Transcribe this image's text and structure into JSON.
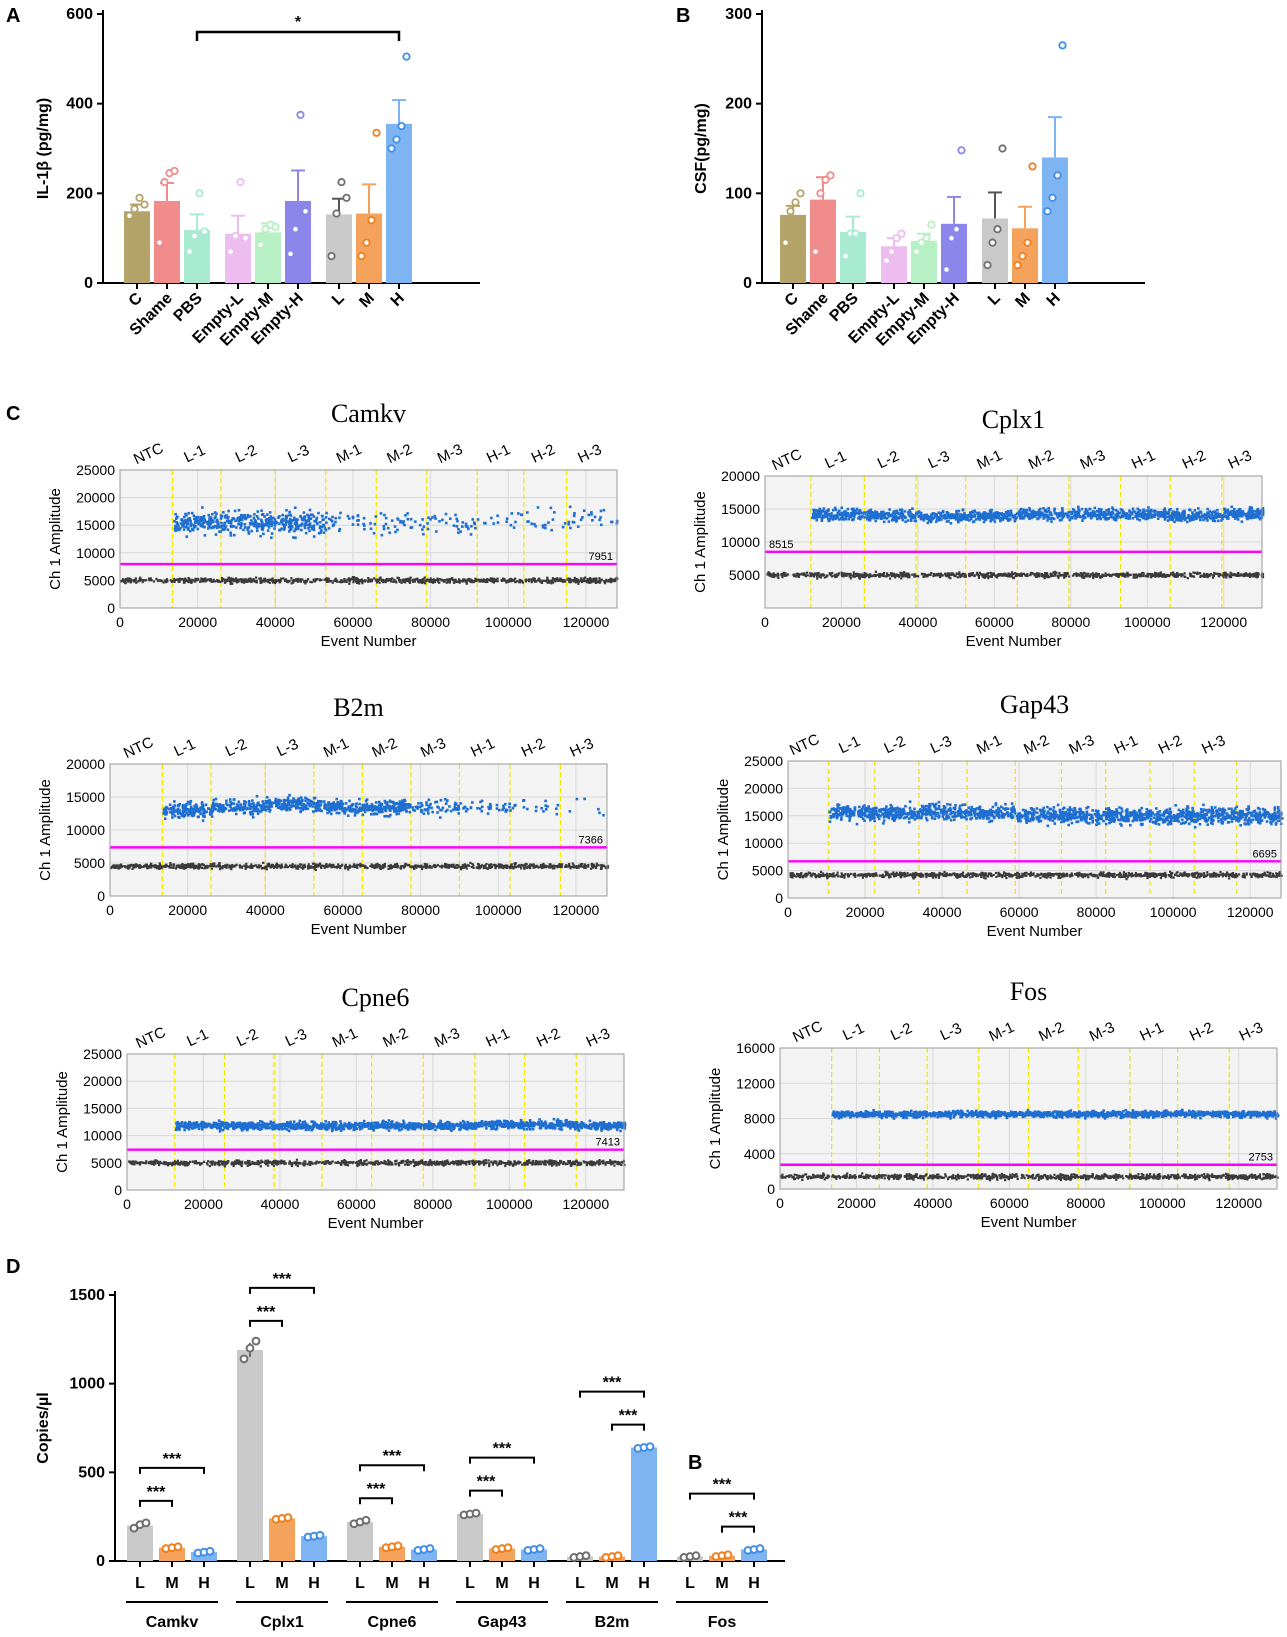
{
  "panel_letters": {
    "A": "A",
    "B": "B",
    "C": "C",
    "D": "D",
    "stray": "B"
  },
  "colors": {
    "C": "#b5a46a",
    "Shame": "#f08c8c",
    "PBS": "#a9ead2",
    "Empty-L": "#edbdf0",
    "Empty-M": "#b6f0c4",
    "Empty-H": "#8c86ea",
    "L": "#c9c9c9",
    "M": "#f5a35c",
    "H": "#7fb4f2",
    "dotL": "#6e6e6e",
    "dotM": "#ef7f1a",
    "dotH": "#3f8fe6",
    "positive": "#1e6fd1",
    "negative": "#3a3a3a",
    "threshold": "#ff00ff",
    "divider": "#f2e600"
  },
  "chart_data": [
    {
      "id": "A",
      "type": "bar",
      "categories": [
        "C",
        "Shame",
        "PBS",
        "Empty-L",
        "Empty-M",
        "Empty-H",
        "L",
        "M",
        "H"
      ],
      "values": [
        160,
        183,
        118,
        110,
        113,
        183,
        153,
        155,
        355
      ],
      "sem": [
        15,
        40,
        35,
        40,
        20,
        68,
        35,
        65,
        53
      ],
      "points": [
        [
          150,
          165,
          190,
          175
        ],
        [
          90,
          225,
          245,
          250
        ],
        [
          70,
          105,
          200,
          115
        ],
        [
          70,
          105,
          225,
          100
        ],
        [
          85,
          120,
          130,
          125
        ],
        [
          65,
          120,
          375,
          160
        ],
        [
          60,
          155,
          225,
          190
        ],
        [
          60,
          90,
          140,
          335
        ],
        [
          300,
          320,
          350,
          505
        ]
      ],
      "ylabel": "IL-1β (pg/mg)",
      "ylim": [
        0,
        600
      ],
      "yticks": [
        0,
        200,
        400,
        600
      ],
      "significance": [
        {
          "from": "PBS",
          "to": "H",
          "label": "*"
        }
      ]
    },
    {
      "id": "B",
      "type": "bar",
      "categories": [
        "C",
        "Shame",
        "PBS",
        "Empty-L",
        "Empty-M",
        "Empty-H",
        "L",
        "M",
        "H"
      ],
      "values": [
        76,
        93,
        57,
        41,
        47,
        66,
        72,
        61,
        140
      ],
      "sem": [
        10,
        25,
        17,
        9,
        8,
        30,
        29,
        24,
        45
      ],
      "points": [
        [
          45,
          80,
          90,
          100
        ],
        [
          35,
          100,
          115,
          120
        ],
        [
          30,
          55,
          55,
          100
        ],
        [
          25,
          35,
          50,
          55
        ],
        [
          35,
          45,
          50,
          65
        ],
        [
          15,
          50,
          60,
          148
        ],
        [
          20,
          45,
          60,
          150
        ],
        [
          20,
          30,
          45,
          130
        ],
        [
          80,
          95,
          120,
          265
        ]
      ],
      "ylabel": "CSF(pg/mg)",
      "ylim": [
        0,
        300
      ],
      "yticks": [
        0,
        100,
        200,
        300
      ]
    },
    {
      "id": "Camkv",
      "type": "scatter",
      "title": "Camkv",
      "xlabel": "Event Number",
      "ylabel": "Ch 1 Amplitude",
      "xlim": [
        0,
        128000
      ],
      "xticks": [
        0,
        20000,
        40000,
        60000,
        80000,
        100000,
        120000
      ],
      "ylim": [
        0,
        25000
      ],
      "yticks": [
        0,
        5000,
        10000,
        15000,
        20000,
        25000
      ],
      "wells": [
        "NTC",
        "L-1",
        "L-2",
        "L-3",
        "M-1",
        "M-2",
        "M-3",
        "H-1",
        "H-2",
        "H-3"
      ],
      "dividers": [
        13500,
        26000,
        40000,
        53000,
        66000,
        79000,
        92000,
        104000,
        115000
      ],
      "threshold": 7951,
      "threshold_label": "7951",
      "negative_level": 5000,
      "positive_level": [
        15500,
        15500,
        15500,
        15500,
        15500,
        15500,
        15500,
        15500,
        16000
      ],
      "positive_density": [
        1,
        1,
        1,
        0.2,
        0.2,
        0.2,
        0.08,
        0.1,
        0.15
      ],
      "positive_spread": 3500
    },
    {
      "id": "Cplx1",
      "type": "scatter",
      "title": "Cplx1",
      "xlabel": "Event Number",
      "ylabel": "Ch 1 Amplitude",
      "xlim": [
        0,
        130000
      ],
      "xticks": [
        0,
        20000,
        40000,
        60000,
        80000,
        100000,
        120000
      ],
      "ylim": [
        0,
        20000
      ],
      "yticks": [
        5000,
        10000,
        15000,
        20000
      ],
      "wells": [
        "NTC",
        "L-1",
        "L-2",
        "L-3",
        "M-1",
        "M-2",
        "M-3",
        "H-1",
        "H-2",
        "H-3"
      ],
      "dividers": [
        12000,
        26000,
        39500,
        52500,
        66000,
        79500,
        93000,
        106000,
        119500
      ],
      "threshold": 8515,
      "threshold_label": "8515",
      "negative_level": 5000,
      "positive_level": [
        14200,
        14000,
        13800,
        14000,
        14200,
        14200,
        14200,
        14000,
        14300
      ],
      "positive_density": [
        1,
        1,
        1,
        1,
        1,
        1,
        1,
        1,
        1
      ],
      "positive_spread": 1500
    },
    {
      "id": "B2m",
      "type": "scatter",
      "title": "B2m",
      "xlabel": "Event Number",
      "ylabel": "Ch 1 Amplitude",
      "xlim": [
        0,
        128000
      ],
      "xticks": [
        0,
        20000,
        40000,
        60000,
        80000,
        100000,
        120000
      ],
      "ylim": [
        0,
        20000
      ],
      "yticks": [
        0,
        5000,
        10000,
        15000,
        20000
      ],
      "wells": [
        "NTC",
        "L-1",
        "L-2",
        "L-3",
        "M-1",
        "M-2",
        "M-3",
        "H-1",
        "H-2",
        "H-3"
      ],
      "dividers": [
        13500,
        26000,
        40000,
        52500,
        65000,
        77500,
        90000,
        103000,
        116000
      ],
      "threshold": 7366,
      "threshold_label": "7366",
      "negative_level": 4500,
      "positive_level": [
        13000,
        13500,
        14000,
        13500,
        13500,
        13500,
        13500,
        13500,
        13500
      ],
      "positive_density": [
        1,
        1,
        1,
        1,
        1,
        0.4,
        0.2,
        0.1,
        0.02
      ],
      "positive_spread": 2000
    },
    {
      "id": "Gap43",
      "type": "scatter",
      "title": "Gap43",
      "xlabel": "Event Number",
      "ylabel": "Ch 1 Amplitude",
      "xlim": [
        0,
        128000
      ],
      "xticks": [
        0,
        20000,
        40000,
        60000,
        80000,
        100000,
        120000
      ],
      "ylim": [
        0,
        25000
      ],
      "yticks": [
        0,
        5000,
        10000,
        15000,
        20000,
        25000
      ],
      "wells": [
        "NTC",
        "L-1",
        "L-2",
        "L-3",
        "M-1",
        "M-2",
        "M-3",
        "H-1",
        "H-2",
        "H-3"
      ],
      "dividers": [
        10500,
        22500,
        34000,
        46500,
        59000,
        71000,
        82500,
        94000,
        105500,
        116500
      ],
      "threshold": 6695,
      "threshold_label": "6695",
      "negative_level": 4200,
      "positive_level": [
        15500,
        15500,
        15800,
        15500,
        15000,
        15000,
        15000,
        15000,
        15000,
        15000
      ],
      "positive_density": [
        1,
        1,
        1,
        1,
        1,
        1,
        1,
        1,
        1,
        1
      ],
      "positive_spread": 2500
    },
    {
      "id": "Cpne6",
      "type": "scatter",
      "title": "Cpne6",
      "xlabel": "Event Number",
      "ylabel": "Ch 1 Amplitude",
      "xlim": [
        0,
        130000
      ],
      "xticks": [
        0,
        20000,
        40000,
        60000,
        80000,
        100000,
        120000
      ],
      "ylim": [
        0,
        25000
      ],
      "yticks": [
        0,
        5000,
        10000,
        15000,
        20000,
        25000
      ],
      "wells": [
        "NTC",
        "L-1",
        "L-2",
        "L-3",
        "M-1",
        "M-2",
        "M-3",
        "H-1",
        "H-2",
        "H-3"
      ],
      "dividers": [
        12500,
        25500,
        38500,
        51000,
        64000,
        77500,
        91000,
        104000,
        117500
      ],
      "threshold": 7413,
      "threshold_label": "7413",
      "negative_level": 5000,
      "positive_level": [
        11800,
        11800,
        11800,
        11800,
        11800,
        11800,
        12000,
        12000,
        11800
      ],
      "positive_density": [
        1,
        1,
        1,
        1,
        1,
        1,
        1,
        1,
        1
      ],
      "positive_spread": 1300
    },
    {
      "id": "Fos",
      "type": "scatter",
      "title": "Fos",
      "xlabel": "Event Number",
      "ylabel": "Ch 1 Amplitude",
      "xlim": [
        0,
        130000
      ],
      "xticks": [
        0,
        20000,
        40000,
        60000,
        80000,
        100000,
        120000
      ],
      "ylim": [
        0,
        16000
      ],
      "yticks": [
        0,
        4000,
        8000,
        12000,
        16000
      ],
      "wells": [
        "NTC",
        "L-1",
        "L-2",
        "L-3",
        "M-1",
        "M-2",
        "M-3",
        "H-1",
        "H-2",
        "H-3"
      ],
      "dividers": [
        13500,
        26000,
        38500,
        52000,
        65000,
        78000,
        91500,
        104000,
        117500
      ],
      "threshold": 2753,
      "threshold_label": "2753",
      "negative_level": 1400,
      "positive_level": [
        8500,
        8500,
        8500,
        8500,
        8500,
        8500,
        8500,
        8500,
        8500
      ],
      "positive_density": [
        1,
        1,
        1,
        1,
        1,
        1,
        1,
        1,
        1
      ],
      "positive_spread": 600
    },
    {
      "id": "D",
      "type": "bar",
      "genes": [
        "Camkv",
        "Cplx1",
        "Cpne6",
        "Gap43",
        "B2m",
        "Fos"
      ],
      "groups": [
        "L",
        "M",
        "H"
      ],
      "values": [
        [
          200,
          75,
          50
        ],
        [
          1190,
          240,
          140
        ],
        [
          220,
          80,
          65
        ],
        [
          265,
          70,
          65
        ],
        [
          25,
          25,
          640
        ],
        [
          25,
          30,
          65
        ]
      ],
      "sem": [
        [
          15,
          5,
          5
        ],
        [
          40,
          5,
          5
        ],
        [
          10,
          5,
          5
        ],
        [
          8,
          5,
          5
        ],
        [
          3,
          3,
          5
        ],
        [
          3,
          3,
          5
        ]
      ],
      "points": [
        [
          [
            185,
            205,
            215
          ],
          [
            70,
            75,
            80
          ],
          [
            45,
            50,
            55
          ]
        ],
        [
          [
            1140,
            1200,
            1240
          ],
          [
            235,
            240,
            245
          ],
          [
            135,
            140,
            145
          ]
        ],
        [
          [
            210,
            220,
            230
          ],
          [
            75,
            80,
            85
          ],
          [
            60,
            65,
            70
          ]
        ],
        [
          [
            260,
            265,
            270
          ],
          [
            65,
            70,
            75
          ],
          [
            60,
            65,
            70
          ]
        ],
        [
          [
            20,
            25,
            30
          ],
          [
            20,
            25,
            30
          ],
          [
            635,
            640,
            645
          ]
        ],
        [
          [
            20,
            25,
            30
          ],
          [
            25,
            30,
            35
          ],
          [
            60,
            65,
            70
          ]
        ]
      ],
      "ylabel": "Copies/µl",
      "ylim": [
        0,
        1500
      ],
      "yticks": [
        0,
        500,
        1000,
        1500
      ],
      "significance": [
        {
          "gene": "Camkv",
          "from": "L",
          "to": "M",
          "label": "***"
        },
        {
          "gene": "Camkv",
          "from": "L",
          "to": "H",
          "label": "***"
        },
        {
          "gene": "Cplx1",
          "from": "L",
          "to": "M",
          "label": "***"
        },
        {
          "gene": "Cplx1",
          "from": "L",
          "to": "H",
          "label": "***"
        },
        {
          "gene": "Cpne6",
          "from": "L",
          "to": "M",
          "label": "***"
        },
        {
          "gene": "Cpne6",
          "from": "L",
          "to": "H",
          "label": "***"
        },
        {
          "gene": "Gap43",
          "from": "L",
          "to": "M",
          "label": "***"
        },
        {
          "gene": "Gap43",
          "from": "L",
          "to": "H",
          "label": "***"
        },
        {
          "gene": "B2m",
          "from": "M",
          "to": "H",
          "label": "***"
        },
        {
          "gene": "B2m",
          "from": "L",
          "to": "H",
          "label": "***"
        },
        {
          "gene": "Fos",
          "from": "M",
          "to": "H",
          "label": "***"
        },
        {
          "gene": "Fos",
          "from": "L",
          "to": "H",
          "label": "***"
        }
      ]
    }
  ]
}
